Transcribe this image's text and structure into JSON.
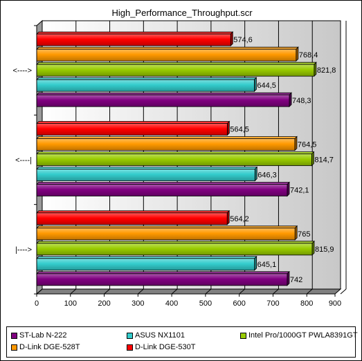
{
  "chart_data": {
    "type": "bar",
    "orientation": "horizontal",
    "title": "High_Performance_Throughput.scr",
    "xlabel": "",
    "ylabel": "",
    "xlim": [
      0,
      900
    ],
    "x_ticks": [
      0,
      100,
      200,
      300,
      400,
      500,
      600,
      700,
      800,
      900
    ],
    "grid": "vertical",
    "legend_position": "bottom",
    "categories": [
      "<---->",
      "<----|",
      "|---->"
    ],
    "series": [
      {
        "name": "ST-Lab N-222",
        "color": "#800080",
        "values": [
          748.3,
          742.1,
          742
        ],
        "labels": [
          "748,3",
          "742,1",
          "742"
        ]
      },
      {
        "name": "ASUS NX1101",
        "color": "#33cccc",
        "values": [
          644.5,
          646.3,
          645.1
        ],
        "labels": [
          "644,5",
          "646,3",
          "645,1"
        ]
      },
      {
        "name": "Intel Pro/1000GT PWLA8391GT",
        "color": "#99cc00",
        "values": [
          821.8,
          814.7,
          815.9
        ],
        "labels": [
          "821,8",
          "814,7",
          "815,9"
        ]
      },
      {
        "name": "D-Link DGE-528T",
        "color": "#ff9900",
        "values": [
          768.4,
          764.5,
          765
        ],
        "labels": [
          "768,4",
          "764,5",
          "765"
        ]
      },
      {
        "name": "D-Link DGE-530T",
        "color": "#ff0000",
        "values": [
          574.6,
          564.5,
          564.2
        ],
        "labels": [
          "574,6",
          "564,5",
          "564,2"
        ]
      }
    ]
  }
}
